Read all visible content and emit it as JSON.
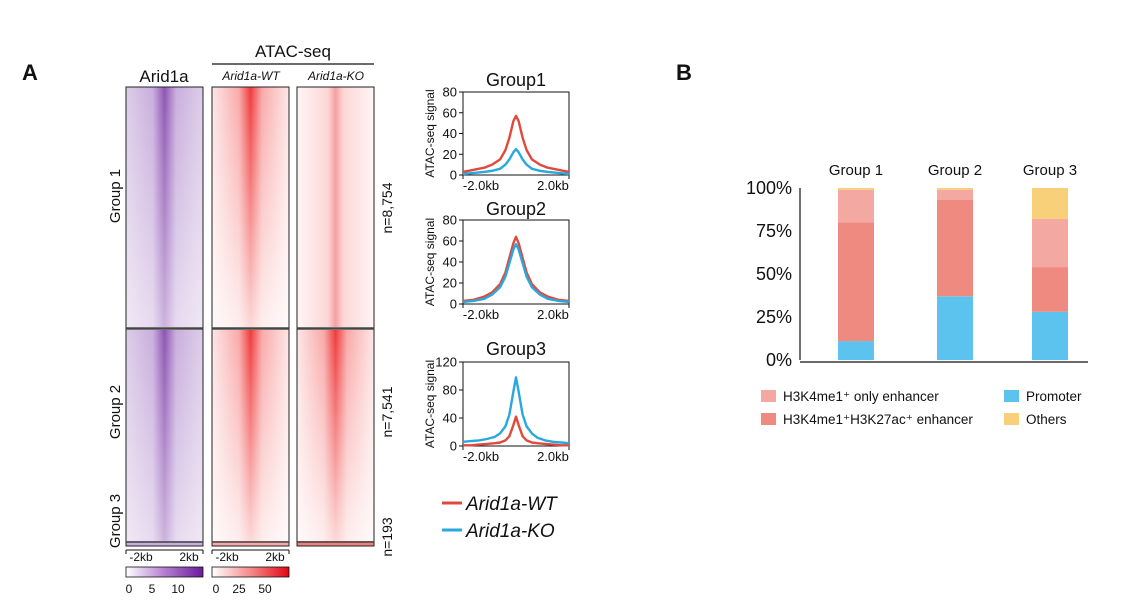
{
  "panels": {
    "a": "A",
    "b": "B"
  },
  "heatmaps": {
    "arid1a_title": "Arid1a",
    "atac_title": "ATAC-seq",
    "wt_title": "Arid1a-WT",
    "ko_title": "Arid1a-KO",
    "groups": [
      {
        "label": "Group 1",
        "n": "n=8,754"
      },
      {
        "label": "Group 2",
        "n": "n=7,541"
      },
      {
        "label": "Group 3",
        "n": "n=193"
      }
    ],
    "axis_left": "-2kb",
    "axis_right": "2kb",
    "arid1a_scale": [
      "0",
      "5",
      "10"
    ],
    "atac_scale": [
      "0",
      "25",
      "50"
    ],
    "colors": {
      "arid1a": "#6a1b9a",
      "atac": "#e53935"
    }
  },
  "legend_a": {
    "wt": "Arid1a-WT",
    "ko": "Arid1a-KO",
    "wt_color": "#e04a3c",
    "ko_color": "#29a8e0"
  },
  "legend_b": {
    "h3k4me1_only": "H3K4me1⁺ only enhancer",
    "h3k4me1_h3k27ac": "H3K4me1⁺H3K27ac⁺ enhancer",
    "promoter": "Promoter",
    "others": "Others"
  },
  "chart_data": [
    {
      "type": "line",
      "title": "Group1",
      "ylabel": "ATAC-seq signal",
      "xlabel_left": "-2.0kb",
      "xlabel_right": "2.0kb",
      "ylim": [
        0,
        80
      ],
      "yticks": [
        0,
        20,
        40,
        60,
        80
      ],
      "xlim": [
        -2,
        2
      ],
      "x": [
        -2,
        -1.6,
        -1.2,
        -0.9,
        -0.6,
        -0.4,
        -0.25,
        -0.1,
        0,
        0.1,
        0.25,
        0.4,
        0.6,
        0.9,
        1.2,
        1.6,
        2
      ],
      "series": [
        {
          "name": "Arid1a-WT",
          "color": "#e04a3c",
          "values": [
            3,
            5,
            7,
            10,
            15,
            24,
            36,
            52,
            57,
            52,
            36,
            24,
            15,
            10,
            7,
            5,
            3
          ]
        },
        {
          "name": "Arid1a-KO",
          "color": "#29a8e0",
          "values": [
            1,
            2,
            3,
            4,
            6,
            10,
            15,
            22,
            25,
            22,
            15,
            10,
            6,
            4,
            3,
            2,
            1
          ]
        }
      ]
    },
    {
      "type": "line",
      "title": "Group2",
      "ylabel": "ATAC-seq signal",
      "xlabel_left": "-2.0kb",
      "xlabel_right": "2.0kb",
      "ylim": [
        0,
        80
      ],
      "yticks": [
        0,
        20,
        40,
        60,
        80
      ],
      "xlim": [
        -2,
        2
      ],
      "x": [
        -2,
        -1.6,
        -1.2,
        -0.9,
        -0.6,
        -0.4,
        -0.25,
        -0.1,
        0,
        0.1,
        0.25,
        0.4,
        0.6,
        0.9,
        1.2,
        1.6,
        2
      ],
      "series": [
        {
          "name": "Arid1a-WT",
          "color": "#e04a3c",
          "values": [
            3,
            4,
            7,
            11,
            19,
            30,
            44,
            58,
            64,
            58,
            44,
            30,
            19,
            11,
            7,
            4,
            3
          ]
        },
        {
          "name": "Arid1a-KO",
          "color": "#29a8e0",
          "values": [
            2,
            3,
            5,
            9,
            16,
            26,
            39,
            52,
            57,
            52,
            39,
            26,
            16,
            9,
            5,
            3,
            2
          ]
        }
      ]
    },
    {
      "type": "line",
      "title": "Group3",
      "ylabel": "ATAC-seq signal",
      "xlabel_left": "-2.0kb",
      "xlabel_right": "2.0kb",
      "ylim": [
        0,
        120
      ],
      "yticks": [
        0,
        40,
        80,
        120
      ],
      "xlim": [
        -2,
        2
      ],
      "x": [
        -2,
        -1.7,
        -1.4,
        -1.1,
        -0.8,
        -0.6,
        -0.4,
        -0.25,
        -0.1,
        0,
        0.1,
        0.25,
        0.4,
        0.6,
        0.8,
        1.1,
        1.4,
        1.7,
        2
      ],
      "series": [
        {
          "name": "Arid1a-WT",
          "color": "#e04a3c",
          "values": [
            1,
            1,
            2,
            3,
            4,
            5,
            8,
            14,
            30,
            42,
            30,
            14,
            8,
            5,
            4,
            3,
            2,
            1,
            1
          ]
        },
        {
          "name": "Arid1a-KO",
          "color": "#29a8e0",
          "values": [
            6,
            7,
            8,
            10,
            13,
            18,
            28,
            45,
            78,
            98,
            78,
            45,
            28,
            18,
            12,
            8,
            6,
            5,
            4
          ]
        }
      ]
    },
    {
      "type": "bar",
      "stacked": true,
      "categories": [
        "Group 1",
        "Group 2",
        "Group 3"
      ],
      "yticks": [
        "0%",
        "25%",
        "50%",
        "75%",
        "100%"
      ],
      "ylim": [
        0,
        100
      ],
      "series": [
        {
          "name": "Promoter",
          "color": "#5bc3ee",
          "values": [
            11,
            37,
            28
          ]
        },
        {
          "name": "H3K4me1⁺H3K27ac⁺ enhancer",
          "color": "#ee8a80",
          "values": [
            69,
            56,
            26
          ]
        },
        {
          "name": "H3K4me1⁺ only enhancer",
          "color": "#f4a8a2",
          "values": [
            19,
            6,
            28
          ]
        },
        {
          "name": "Others",
          "color": "#f8d07a",
          "values": [
            1,
            1,
            18
          ]
        }
      ]
    }
  ]
}
